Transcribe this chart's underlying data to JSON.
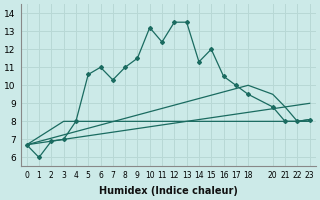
{
  "xlabel": "Humidex (Indice chaleur)",
  "background_color": "#cceae8",
  "grid_color": "#b8d8d5",
  "line_color": "#1a6b60",
  "xlim": [
    -0.5,
    23.5
  ],
  "ylim": [
    5.5,
    14.5
  ],
  "xticks": [
    0,
    1,
    2,
    3,
    4,
    5,
    6,
    7,
    8,
    9,
    10,
    11,
    12,
    13,
    14,
    15,
    16,
    17,
    18,
    20,
    21,
    22,
    23
  ],
  "yticks": [
    6,
    7,
    8,
    9,
    10,
    11,
    12,
    13,
    14
  ],
  "line1_x": [
    0,
    1,
    2,
    3,
    4,
    5,
    6,
    7,
    8,
    9,
    10,
    11,
    12,
    13,
    14,
    15,
    16,
    17,
    18,
    20,
    21,
    22,
    23
  ],
  "line1_y": [
    6.7,
    6.0,
    6.9,
    7.0,
    8.0,
    10.6,
    11.0,
    10.3,
    11.0,
    11.5,
    13.2,
    12.4,
    13.5,
    13.5,
    11.3,
    12.0,
    10.5,
    10.0,
    9.5,
    8.8,
    8.0,
    8.0,
    8.1
  ],
  "line2_x": [
    0,
    3,
    23
  ],
  "line2_y": [
    6.7,
    8.0,
    8.0
  ],
  "line3_x": [
    0,
    23
  ],
  "line3_y": [
    6.7,
    9.0
  ],
  "line4_x": [
    0,
    18,
    20,
    21,
    22,
    23
  ],
  "line4_y": [
    6.7,
    10.0,
    9.5,
    8.8,
    8.0,
    8.1
  ]
}
